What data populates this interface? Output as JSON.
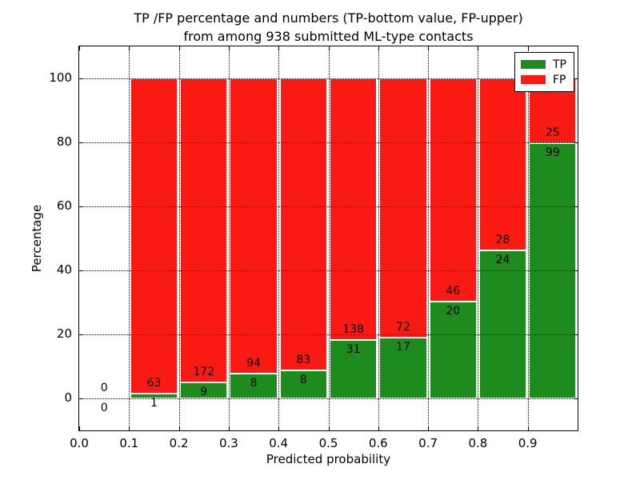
{
  "figure": {
    "title_line1": "TP /FP percentage and numbers (TP-bottom value, FP-upper)",
    "title_line2": "from among 938 submitted ML-type contacts",
    "xlabel": "Predicted probability",
    "ylabel": "Percentage"
  },
  "legend": {
    "position": "upper right",
    "items": [
      {
        "label": "TP",
        "color": "#1e8b1e"
      },
      {
        "label": "FP",
        "color": "#fa1a14"
      }
    ]
  },
  "chart_data": {
    "type": "bar",
    "stacked": true,
    "title": "TP /FP percentage and numbers (TP-bottom value, FP-upper) from among 938 submitted ML-type contacts",
    "xlabel": "Predicted probability",
    "ylabel": "Percentage",
    "total_submitted_contacts": 938,
    "bin_edges": [
      0.0,
      0.1,
      0.2,
      0.3,
      0.4,
      0.5,
      0.6,
      0.7,
      0.8,
      0.9,
      1.0
    ],
    "x_tick_labels": [
      "0.0",
      "0.1",
      "0.2",
      "0.3",
      "0.4",
      "0.5",
      "0.6",
      "0.7",
      "0.8",
      "0.9"
    ],
    "y_ticks": [
      0,
      20,
      40,
      60,
      80,
      100
    ],
    "xlim": [
      0.0,
      1.0
    ],
    "ylim": [
      -10,
      110
    ],
    "grid": "dotted, both axes",
    "legend_position": "upper right",
    "series": [
      {
        "name": "TP",
        "color": "#1e8b1e",
        "counts": [
          0,
          1,
          9,
          8,
          8,
          31,
          17,
          20,
          24,
          99
        ],
        "percentages": [
          0,
          1.56,
          4.97,
          7.84,
          8.79,
          18.34,
          19.1,
          30.3,
          46.15,
          79.84
        ]
      },
      {
        "name": "FP",
        "color": "#fa1a14",
        "counts": [
          0,
          63,
          172,
          94,
          83,
          138,
          72,
          46,
          28,
          25
        ],
        "percentages": [
          0,
          98.44,
          95.03,
          92.16,
          91.21,
          81.66,
          80.9,
          69.7,
          53.85,
          20.16
        ]
      }
    ]
  }
}
